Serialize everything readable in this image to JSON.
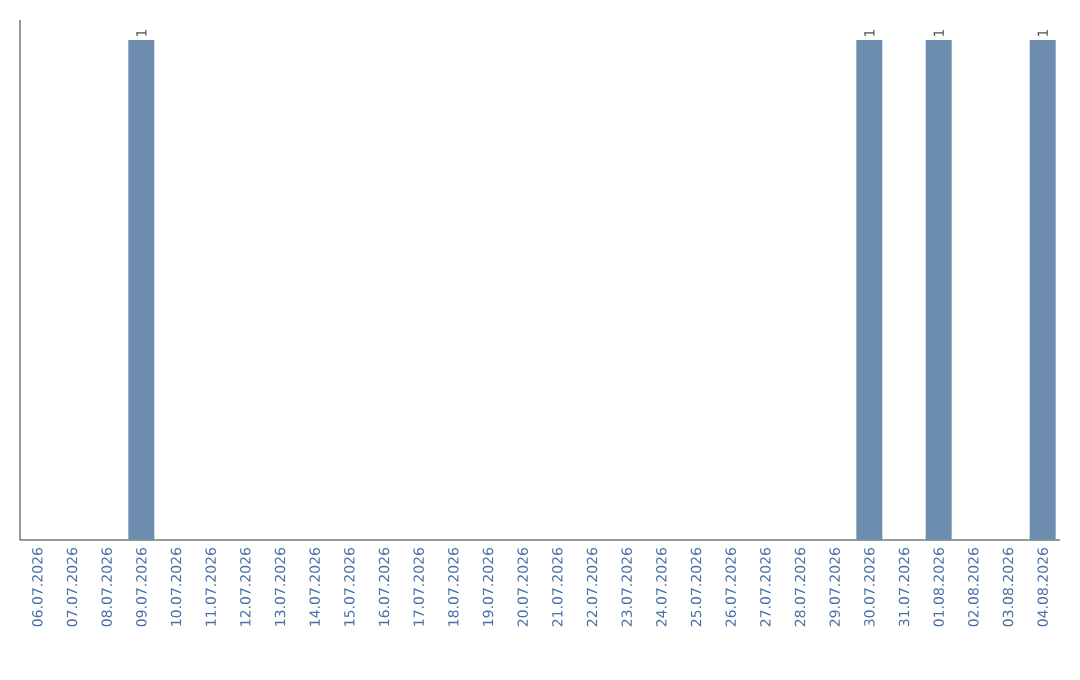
{
  "chart_data": {
    "type": "bar",
    "categories": [
      "06.07.2026",
      "07.07.2026",
      "08.07.2026",
      "09.07.2026",
      "10.07.2026",
      "11.07.2026",
      "12.07.2026",
      "13.07.2026",
      "14.07.2026",
      "15.07.2026",
      "16.07.2026",
      "17.07.2026",
      "18.07.2026",
      "19.07.2026",
      "20.07.2026",
      "21.07.2026",
      "22.07.2026",
      "23.07.2026",
      "24.07.2026",
      "25.07.2026",
      "26.07.2026",
      "27.07.2026",
      "28.07.2026",
      "29.07.2026",
      "30.07.2026",
      "31.07.2026",
      "01.08.2026",
      "02.08.2026",
      "03.08.2026",
      "04.08.2026"
    ],
    "values": [
      0,
      0,
      0,
      1,
      0,
      0,
      0,
      0,
      0,
      0,
      0,
      0,
      0,
      0,
      0,
      0,
      0,
      0,
      0,
      0,
      0,
      0,
      0,
      0,
      1,
      0,
      1,
      0,
      0,
      1
    ],
    "value_labels": [
      null,
      null,
      null,
      "1",
      null,
      null,
      null,
      null,
      null,
      null,
      null,
      null,
      null,
      null,
      null,
      null,
      null,
      null,
      null,
      null,
      null,
      null,
      null,
      null,
      "1",
      null,
      "1",
      null,
      null,
      "1"
    ],
    "color": "#6b8cac",
    "tick_labels": "x"
  }
}
